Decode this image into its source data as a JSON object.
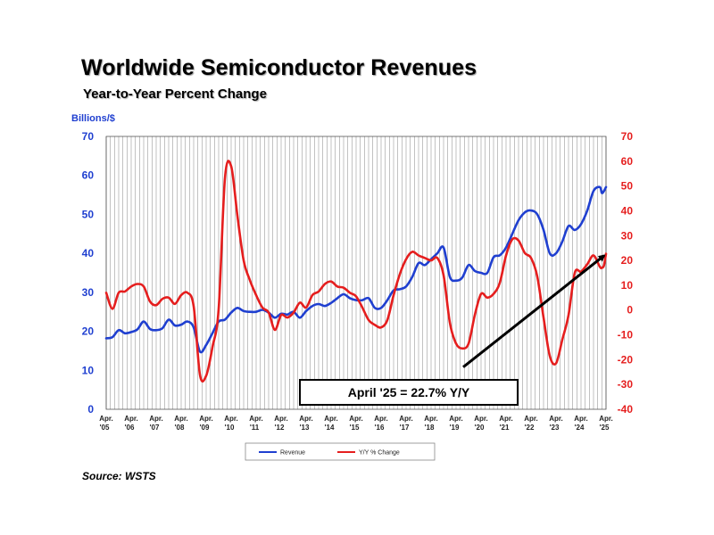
{
  "header": {
    "title": "Worldwide Semiconductor Revenues",
    "subtitle": "Year-to-Year Percent Change"
  },
  "footer": {
    "source": "Source: WSTS"
  },
  "colors": {
    "revenue": "#1f3fd0",
    "yoy": "#e51e1e",
    "grid": "#9a9a9a",
    "arrow": "#000000"
  },
  "chart_data": {
    "type": "line",
    "left_axis_label": "Billions/$",
    "left_ylim": [
      0,
      70
    ],
    "left_ticks": [
      "0",
      "10",
      "20",
      "30",
      "40",
      "50",
      "60",
      "70"
    ],
    "right_ylim": [
      -40,
      70
    ],
    "right_ticks": [
      "-40",
      "-30",
      "-20",
      "-10",
      "0",
      "10",
      "20",
      "30",
      "40",
      "50",
      "60",
      "70"
    ],
    "x_ticks": [
      {
        "month": "Apr.",
        "year": "'05"
      },
      {
        "month": "Apr.",
        "year": "'06"
      },
      {
        "month": "Apr.",
        "year": "'07"
      },
      {
        "month": "Apr.",
        "year": "'08"
      },
      {
        "month": "Apr.",
        "year": "'09"
      },
      {
        "month": "Apr.",
        "year": "'10"
      },
      {
        "month": "Apr.",
        "year": "'11"
      },
      {
        "month": "Apr.",
        "year": "'12"
      },
      {
        "month": "Apr.",
        "year": "'13"
      },
      {
        "month": "Apr.",
        "year": "'14"
      },
      {
        "month": "Apr.",
        "year": "'15"
      },
      {
        "month": "Apr.",
        "year": "'16"
      },
      {
        "month": "Apr.",
        "year": "'17"
      },
      {
        "month": "Apr.",
        "year": "'18"
      },
      {
        "month": "Apr.",
        "year": "'19"
      },
      {
        "month": "Apr.",
        "year": "'20"
      },
      {
        "month": "Apr.",
        "year": "'21"
      },
      {
        "month": "Apr.",
        "year": "'22"
      },
      {
        "month": "Apr.",
        "year": "'23"
      },
      {
        "month": "Apr.",
        "year": "'24"
      },
      {
        "month": "Apr.",
        "year": "'25"
      }
    ],
    "x_range": [
      "Apr. '05",
      "Apr. '25"
    ],
    "grid": "vertical monthly lines",
    "legend_position": "bottom-center",
    "series": [
      {
        "name": "Revenue",
        "axis": "left",
        "points": [
          [
            "Apr. '05",
            18.2
          ],
          [
            "Jul. '05",
            18.5
          ],
          [
            "Oct. '05",
            20.3
          ],
          [
            "Jan. '06",
            19.5
          ],
          [
            "Apr. '06",
            19.8
          ],
          [
            "Jul. '06",
            20.5
          ],
          [
            "Oct. '06",
            22.5
          ],
          [
            "Jan. '07",
            20.6
          ],
          [
            "Apr. '07",
            20.3
          ],
          [
            "Jul. '07",
            20.8
          ],
          [
            "Oct. '07",
            23.0
          ],
          [
            "Jan. '08",
            21.5
          ],
          [
            "Apr. '08",
            21.7
          ],
          [
            "Jul. '08",
            22.5
          ],
          [
            "Oct. '08",
            21.0
          ],
          [
            "Jan. '09",
            14.8
          ],
          [
            "Apr. '09",
            16.5
          ],
          [
            "Jul. '09",
            19.5
          ],
          [
            "Oct. '09",
            22.5
          ],
          [
            "Jan. '10",
            23.0
          ],
          [
            "Apr. '10",
            24.8
          ],
          [
            "Jul. '10",
            26.0
          ],
          [
            "Oct. '10",
            25.2
          ],
          [
            "Jan. '11",
            25.0
          ],
          [
            "Apr. '11",
            25.0
          ],
          [
            "Jul. '11",
            25.5
          ],
          [
            "Oct. '11",
            24.8
          ],
          [
            "Jan. '12",
            23.5
          ],
          [
            "Apr. '12",
            24.5
          ],
          [
            "Jul. '12",
            24.3
          ],
          [
            "Oct. '12",
            25.0
          ],
          [
            "Jan. '13",
            23.5
          ],
          [
            "Apr. '13",
            25.2
          ],
          [
            "Jul. '13",
            26.5
          ],
          [
            "Oct. '13",
            27.0
          ],
          [
            "Jan. '14",
            26.5
          ],
          [
            "Apr. '14",
            27.3
          ],
          [
            "Jul. '14",
            28.5
          ],
          [
            "Oct. '14",
            29.5
          ],
          [
            "Jan. '15",
            28.5
          ],
          [
            "Apr. '15",
            28.0
          ],
          [
            "Jul. '15",
            28.0
          ],
          [
            "Oct. '15",
            28.5
          ],
          [
            "Jan. '16",
            26.0
          ],
          [
            "Apr. '16",
            26.0
          ],
          [
            "Jul. '16",
            28.0
          ],
          [
            "Oct. '16",
            30.5
          ],
          [
            "Jan. '17",
            30.8
          ],
          [
            "Apr. '17",
            31.5
          ],
          [
            "Jul. '17",
            34.0
          ],
          [
            "Oct. '17",
            37.5
          ],
          [
            "Jan. '18",
            37.0
          ],
          [
            "Apr. '18",
            38.5
          ],
          [
            "Jul. '18",
            40.0
          ],
          [
            "Oct. '18",
            41.5
          ],
          [
            "Jan. '19",
            34.0
          ],
          [
            "Apr. '19",
            33.0
          ],
          [
            "Jul. '19",
            33.8
          ],
          [
            "Oct. '19",
            37.0
          ],
          [
            "Jan. '20",
            35.5
          ],
          [
            "Apr. '20",
            35.0
          ],
          [
            "Jul. '20",
            35.0
          ],
          [
            "Oct. '20",
            39.0
          ],
          [
            "Jan. '21",
            39.5
          ],
          [
            "Apr. '21",
            41.5
          ],
          [
            "Jul. '21",
            45.0
          ],
          [
            "Oct. '21",
            48.5
          ],
          [
            "Jan. '22",
            50.5
          ],
          [
            "Apr. '22",
            51.0
          ],
          [
            "Jul. '22",
            50.0
          ],
          [
            "Oct. '22",
            46.0
          ],
          [
            "Jan. '23",
            40.0
          ],
          [
            "Apr. '23",
            40.0
          ],
          [
            "Jul. '23",
            43.0
          ],
          [
            "Oct. '23",
            47.0
          ],
          [
            "Jan. '24",
            46.0
          ],
          [
            "Apr. '24",
            47.5
          ],
          [
            "Jul. '24",
            51.0
          ],
          [
            "Oct. '24",
            56.0
          ],
          [
            "Jan. '25",
            57.0
          ],
          [
            "Feb. '25",
            55.5
          ],
          [
            "Mar. '25",
            56.0
          ],
          [
            "Apr. '25",
            57.0
          ]
        ]
      },
      {
        "name": "Y/Y % Change",
        "axis": "right",
        "points": [
          [
            "Apr. '05",
            7.0
          ],
          [
            "Jul. '05",
            0.5
          ],
          [
            "Oct. '05",
            7.0
          ],
          [
            "Jan. '06",
            7.5
          ],
          [
            "Apr. '06",
            9.5
          ],
          [
            "Jul. '06",
            10.5
          ],
          [
            "Oct. '06",
            9.5
          ],
          [
            "Jan. '07",
            3.5
          ],
          [
            "Apr. '07",
            2.0
          ],
          [
            "Jul. '07",
            4.5
          ],
          [
            "Oct. '07",
            5.0
          ],
          [
            "Jan. '08",
            2.5
          ],
          [
            "Apr. '08",
            6.0
          ],
          [
            "Jul. '08",
            7.0
          ],
          [
            "Oct. '08",
            1.5
          ],
          [
            "Jan. '09",
            -26.0
          ],
          [
            "Apr. '09",
            -26.5
          ],
          [
            "Jul. '09",
            -15.0
          ],
          [
            "Oct. '09",
            0.5
          ],
          [
            "Jan. '10",
            53.0
          ],
          [
            "Apr. '10",
            58.0
          ],
          [
            "Jul. '10",
            38.0
          ],
          [
            "Oct. '10",
            20.0
          ],
          [
            "Jan. '11",
            12.0
          ],
          [
            "Apr. '11",
            6.0
          ],
          [
            "Jul. '11",
            1.0
          ],
          [
            "Oct. '11",
            -1.0
          ],
          [
            "Jan. '12",
            -8.0
          ],
          [
            "Apr. '12",
            -2.0
          ],
          [
            "Jul. '12",
            -3.0
          ],
          [
            "Oct. '12",
            -1.0
          ],
          [
            "Jan. '13",
            3.0
          ],
          [
            "Apr. '13",
            1.0
          ],
          [
            "Jul. '13",
            6.0
          ],
          [
            "Oct. '13",
            7.5
          ],
          [
            "Jan. '14",
            10.5
          ],
          [
            "Apr. '14",
            11.5
          ],
          [
            "Jul. '14",
            9.5
          ],
          [
            "Oct. '14",
            9.0
          ],
          [
            "Jan. '15",
            7.0
          ],
          [
            "Apr. '15",
            5.5
          ],
          [
            "Jul. '15",
            1.0
          ],
          [
            "Oct. '15",
            -4.0
          ],
          [
            "Jan. '16",
            -6.0
          ],
          [
            "Apr. '16",
            -7.0
          ],
          [
            "Jul. '16",
            -4.0
          ],
          [
            "Oct. '16",
            6.0
          ],
          [
            "Jan. '17",
            14.5
          ],
          [
            "Apr. '17",
            20.5
          ],
          [
            "Jul. '17",
            23.5
          ],
          [
            "Oct. '17",
            22.0
          ],
          [
            "Jan. '18",
            21.0
          ],
          [
            "Apr. '18",
            20.0
          ],
          [
            "Jul. '18",
            21.0
          ],
          [
            "Oct. '18",
            14.0
          ],
          [
            "Jan. '19",
            -5.0
          ],
          [
            "Apr. '19",
            -13.5
          ],
          [
            "Jul. '19",
            -15.5
          ],
          [
            "Oct. '19",
            -13.5
          ],
          [
            "Jan. '20",
            -2.0
          ],
          [
            "Apr. '20",
            6.5
          ],
          [
            "Jul. '20",
            5.0
          ],
          [
            "Oct. '20",
            6.5
          ],
          [
            "Jan. '21",
            11.0
          ],
          [
            "Apr. '21",
            22.0
          ],
          [
            "Jul. '21",
            28.5
          ],
          [
            "Oct. '21",
            28.0
          ],
          [
            "Jan. '22",
            23.0
          ],
          [
            "Apr. '22",
            21.0
          ],
          [
            "Jul. '22",
            13.5
          ],
          [
            "Oct. '22",
            -3.0
          ],
          [
            "Jan. '23",
            -18.5
          ],
          [
            "Apr. '23",
            -21.5
          ],
          [
            "Jul. '23",
            -12.0
          ],
          [
            "Oct. '23",
            -2.0
          ],
          [
            "Jan. '24",
            15.0
          ],
          [
            "Apr. '24",
            15.5
          ],
          [
            "Jul. '24",
            18.5
          ],
          [
            "Oct. '24",
            22.0
          ],
          [
            "Jan. '25",
            17.5
          ],
          [
            "Feb. '25",
            17.0
          ],
          [
            "Mar. '25",
            18.0
          ],
          [
            "Apr. '25",
            22.7
          ]
        ]
      }
    ],
    "trend_arrow": {
      "from": [
        "Apr. '19",
        -23.0
      ],
      "to": [
        "Apr. '25",
        22.7
      ],
      "axis": "right",
      "color": "#000000"
    },
    "annotation": "April '25 = 22.7% Y/Y",
    "legend": [
      {
        "label": "Revenue",
        "color": "#1f3fd0"
      },
      {
        "label": "Y/Y % Change",
        "color": "#e51e1e"
      }
    ]
  }
}
